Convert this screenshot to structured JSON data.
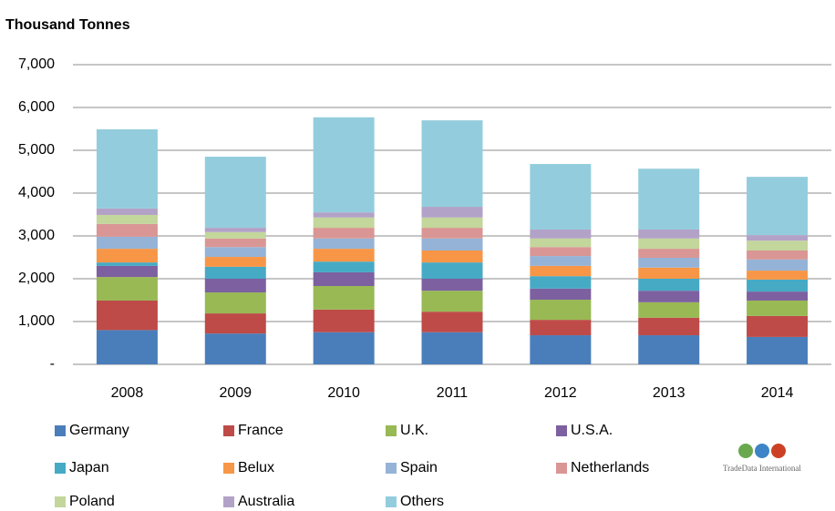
{
  "chart_data": {
    "type": "stacked_bar",
    "title": "Thousand Tonnes",
    "categories": [
      "2008",
      "2009",
      "2010",
      "2011",
      "2012",
      "2013",
      "2014"
    ],
    "series": [
      {
        "name": "Germany",
        "color": "#4a7ebb",
        "values": [
          800,
          720,
          750,
          750,
          680,
          680,
          640
        ]
      },
      {
        "name": "France",
        "color": "#be4b48",
        "values": [
          690,
          470,
          530,
          480,
          360,
          410,
          490
        ]
      },
      {
        "name": "U.K.",
        "color": "#98b954",
        "values": [
          550,
          490,
          550,
          490,
          470,
          360,
          360
        ]
      },
      {
        "name": "U.S.A.",
        "color": "#7d60a0",
        "values": [
          260,
          320,
          320,
          280,
          260,
          270,
          210
        ]
      },
      {
        "name": "Japan",
        "color": "#46aac5",
        "values": [
          80,
          280,
          250,
          380,
          290,
          280,
          280
        ]
      },
      {
        "name": "Belux",
        "color": "#f79646",
        "values": [
          320,
          230,
          300,
          280,
          240,
          260,
          210
        ]
      },
      {
        "name": "Spain",
        "color": "#95b3d7",
        "values": [
          280,
          230,
          240,
          280,
          230,
          230,
          260
        ]
      },
      {
        "name": "Netherlands",
        "color": "#d99694",
        "values": [
          300,
          200,
          250,
          250,
          210,
          210,
          210
        ]
      },
      {
        "name": "Poland",
        "color": "#c3d69b",
        "values": [
          210,
          150,
          240,
          240,
          200,
          240,
          230
        ]
      },
      {
        "name": "Australia",
        "color": "#b3a2c7",
        "values": [
          150,
          100,
          120,
          250,
          210,
          210,
          130
        ]
      },
      {
        "name": "Others",
        "color": "#93cddd",
        "values": [
          1850,
          1660,
          2220,
          2020,
          1530,
          1420,
          1360
        ]
      }
    ],
    "ylim": [
      0,
      7000
    ],
    "yticks": [
      {
        "value": 0,
        "label": "-"
      },
      {
        "value": 1000,
        "label": "1,000"
      },
      {
        "value": 2000,
        "label": "2,000"
      },
      {
        "value": 3000,
        "label": "3,000"
      },
      {
        "value": 4000,
        "label": "4,000"
      },
      {
        "value": 5000,
        "label": "5,000"
      },
      {
        "value": 6000,
        "label": "6,000"
      },
      {
        "value": 7000,
        "label": "7,000"
      }
    ],
    "grid": true,
    "logo": "TradeData International"
  }
}
